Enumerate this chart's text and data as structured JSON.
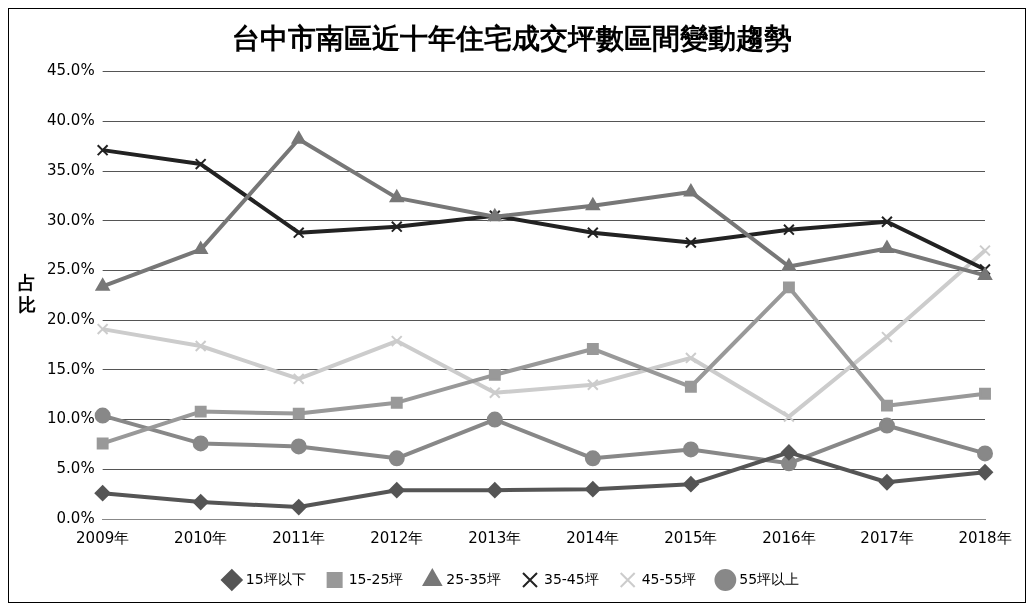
{
  "chart_data": {
    "type": "line",
    "title": "台中市南區近十年住宅成交坪數區間變動趨勢",
    "ylabel": "占比",
    "categories": [
      "2009年",
      "2010年",
      "2011年",
      "2012年",
      "2013年",
      "2014年",
      "2015年",
      "2016年",
      "2017年",
      "2018年"
    ],
    "series": [
      {
        "name": "15坪以下",
        "color": "#555555",
        "marker": "diamond",
        "values": [
          2.6,
          1.7,
          1.2,
          2.9,
          2.9,
          3.0,
          3.5,
          6.7,
          3.7,
          4.7
        ]
      },
      {
        "name": "15-25坪",
        "color": "#999999",
        "marker": "square",
        "values": [
          7.6,
          10.8,
          10.6,
          11.7,
          14.5,
          17.1,
          13.3,
          23.3,
          11.4,
          12.6
        ]
      },
      {
        "name": "25-35坪",
        "color": "#777777",
        "marker": "triangle",
        "values": [
          23.4,
          27.1,
          38.2,
          32.3,
          30.4,
          31.5,
          32.9,
          25.4,
          27.2,
          24.5
        ]
      },
      {
        "name": "35-45坪",
        "color": "#222222",
        "marker": "cross",
        "values": [
          37.1,
          35.7,
          28.8,
          29.4,
          30.5,
          28.8,
          27.8,
          29.1,
          29.9,
          25.1
        ]
      },
      {
        "name": "45-55坪",
        "color": "#cccccc",
        "marker": "cross",
        "values": [
          19.1,
          17.4,
          14.1,
          17.9,
          12.7,
          13.5,
          16.2,
          10.3,
          18.3,
          27.0
        ]
      },
      {
        "name": "55坪以上",
        "color": "#888888",
        "marker": "circle",
        "values": [
          10.4,
          7.6,
          7.3,
          6.1,
          10.0,
          6.1,
          7.0,
          5.6,
          9.4,
          6.6
        ]
      }
    ],
    "ylim": [
      0,
      45
    ],
    "yticks": [
      {
        "value": 0,
        "label": "0.0%"
      },
      {
        "value": 5,
        "label": "5.0%"
      },
      {
        "value": 10,
        "label": "10.0%"
      },
      {
        "value": 15,
        "label": "15.0%"
      },
      {
        "value": 20,
        "label": "20.0%"
      },
      {
        "value": 25,
        "label": "25.0%"
      },
      {
        "value": 30,
        "label": "30.0%"
      },
      {
        "value": 35,
        "label": "35.0%"
      },
      {
        "value": 40,
        "label": "40.0%"
      },
      {
        "value": 45,
        "label": "45.0%"
      }
    ],
    "grid": "y",
    "legend": "bottom",
    "line_style": "solid"
  }
}
